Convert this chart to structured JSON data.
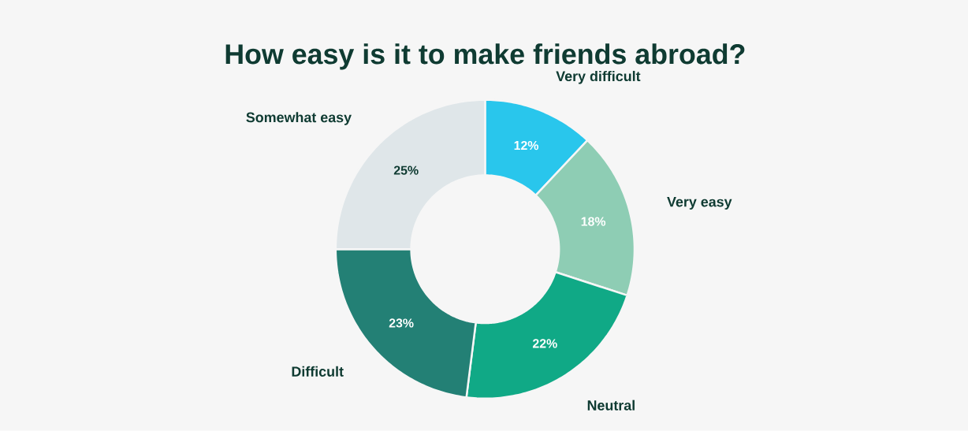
{
  "chart_data": {
    "type": "donut",
    "title": "How easy is it to make friends abroad?",
    "categories": [
      "Very difficult",
      "Very easy",
      "Neutral",
      "Difficult",
      "Somewhat easy"
    ],
    "values": [
      12,
      18,
      22,
      23,
      25
    ],
    "colors": [
      "#29c6ec",
      "#8ecdb4",
      "#10a986",
      "#238075",
      "#dfe6e9"
    ],
    "value_labels": [
      "12%",
      "18%",
      "22%",
      "23%",
      "25%"
    ]
  }
}
